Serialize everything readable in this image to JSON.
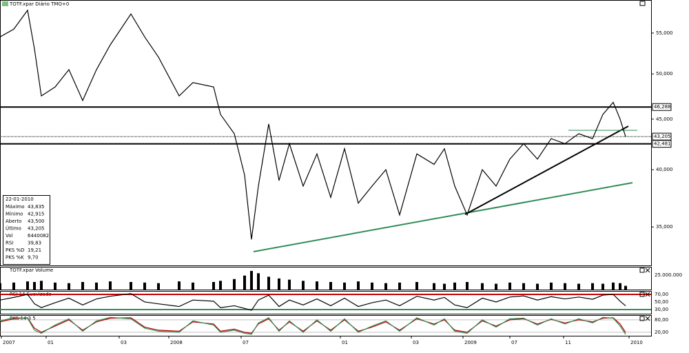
{
  "chart_data": {
    "type": "line",
    "title": "TOTF.xpar Diário TMO+0",
    "scale": "log",
    "color": "#000000",
    "xlim": [
      0,
      472.5
    ],
    "ylim": [
      32000,
      59400
    ],
    "yticks": [
      {
        "value": 35000,
        "label": "35,000"
      },
      {
        "value": 40000,
        "label": "40,000"
      },
      {
        "value": 45000,
        "label": "45,000"
      },
      {
        "value": 50000,
        "label": "50,000"
      },
      {
        "value": 55000,
        "label": "55,000"
      }
    ],
    "levels": [
      {
        "value": 46288,
        "label": "46,288",
        "style": "solid"
      },
      {
        "value": 43205,
        "label": "43,205",
        "style": "dotted"
      },
      {
        "value": 42481,
        "label": "42,481",
        "style": "solid"
      }
    ],
    "xticks": [
      {
        "value": 1,
        "label": "2007"
      },
      {
        "value": 33.5,
        "label": "01"
      },
      {
        "value": 86.5,
        "label": "03"
      },
      {
        "value": 122.5,
        "label": "2008"
      },
      {
        "value": 175,
        "label": "07"
      },
      {
        "value": 247,
        "label": "01"
      },
      {
        "value": 298.5,
        "label": "03"
      },
      {
        "value": 336,
        "label": "2009"
      },
      {
        "value": 370,
        "label": "07"
      },
      {
        "value": 409,
        "label": "11"
      },
      {
        "value": 456.5,
        "label": "2010"
      }
    ],
    "x": [
      0,
      10,
      20,
      25,
      30,
      40,
      50,
      60,
      70,
      80,
      95,
      105,
      115,
      130,
      140,
      155,
      160,
      170,
      177.5,
      182.5,
      187.5,
      195,
      202.5,
      210,
      220,
      230,
      240,
      250,
      260,
      270,
      280,
      290,
      302.5,
      315,
      322.5,
      330,
      339,
      350,
      360,
      370,
      380,
      390,
      400,
      410,
      420,
      430,
      437.5,
      445,
      450,
      454
    ],
    "values": [
      54500,
      55500,
      58000,
      53000,
      47500,
      48500,
      50500,
      47000,
      50500,
      53500,
      57500,
      54500,
      52000,
      47500,
      49000,
      48500,
      45500,
      43500,
      39500,
      34000,
      38500,
      44500,
      39000,
      42500,
      38500,
      41500,
      37500,
      42000,
      37000,
      38500,
      40000,
      36000,
      41500,
      40500,
      42000,
      38500,
      36000,
      40000,
      38500,
      41000,
      42500,
      41000,
      43000,
      42500,
      43500,
      43000,
      45500,
      46800,
      45000,
      43205
    ],
    "info": {
      "date": "22-01-2010",
      "rows": [
        {
          "label": "Máximo",
          "value": "43,835"
        },
        {
          "label": "Mínimo",
          "value": "42,915"
        },
        {
          "label": "Aberto",
          "value": "43,500"
        },
        {
          "label": "Último",
          "value": "43,205"
        },
        {
          "label": "Vol",
          "value": "6440082"
        },
        {
          "label": "RSI",
          "value": "39,83"
        },
        {
          "label": "PKS %D",
          "value": "19,21",
          "color": "#c00000"
        },
        {
          "label": "PKS %K",
          "value": "9,70",
          "color": "#2e8b57"
        }
      ]
    },
    "volume": {
      "title": "TOTF.xpar Volume",
      "color": "#000000",
      "ylim": [
        0,
        39000000
      ],
      "yticks": [
        {
          "value": 25000000,
          "label": "25.000.000"
        }
      ],
      "values": [
        11000000,
        12000000,
        14000000,
        13000000,
        15000000,
        12000000,
        11000000,
        13000000,
        12000000,
        14000000,
        13000000,
        12000000,
        11000000,
        14000000,
        12000000,
        13000000,
        15000000,
        18000000,
        24000000,
        32000000,
        28000000,
        22000000,
        19000000,
        17000000,
        15000000,
        14000000,
        13000000,
        12000000,
        14000000,
        12000000,
        11000000,
        12000000,
        13000000,
        11000000,
        10000000,
        12000000,
        13000000,
        11000000,
        10000000,
        12000000,
        11000000,
        10000000,
        12000000,
        11000000,
        10000000,
        11000000,
        10000000,
        12000000,
        11000000,
        6440082
      ]
    },
    "rsi": {
      "title": "RSI 14 Suavizado",
      "color": "#000000",
      "ylim": [
        19,
        79
      ],
      "yticks": [
        {
          "value": 30,
          "label": "30,00"
        },
        {
          "value": 50,
          "label": "50,00"
        },
        {
          "value": 70,
          "label": "70,00"
        }
      ],
      "values": [
        55,
        62,
        70,
        45,
        35,
        48,
        60,
        42,
        58,
        65,
        72,
        50,
        45,
        38,
        55,
        52,
        35,
        40,
        33,
        28,
        55,
        68,
        38,
        55,
        42,
        58,
        40,
        60,
        38,
        48,
        55,
        40,
        65,
        55,
        62,
        42,
        35,
        60,
        50,
        63,
        66,
        55,
        64,
        58,
        63,
        57,
        68,
        70,
        52,
        39.83
      ]
    },
    "stoch": {
      "title": "PKS 14 3 5",
      "ylim": [
        3,
        103
      ],
      "yticks": [
        {
          "value": 20,
          "label": "20,00"
        },
        {
          "value": 80,
          "label": "80,00"
        }
      ],
      "series": [
        {
          "name": "PKS %D",
          "color": "#c00000",
          "values": [
            70,
            85,
            90,
            40,
            20,
            50,
            80,
            30,
            70,
            88,
            90,
            45,
            30,
            25,
            70,
            60,
            25,
            35,
            20,
            15,
            60,
            85,
            30,
            70,
            25,
            75,
            30,
            80,
            25,
            45,
            70,
            30,
            85,
            60,
            80,
            30,
            20,
            75,
            50,
            80,
            85,
            60,
            82,
            65,
            80,
            70,
            88,
            90,
            60,
            19.21
          ]
        },
        {
          "name": "PKS %K",
          "color": "#2e8b57",
          "values": [
            75,
            90,
            88,
            30,
            15,
            55,
            85,
            25,
            75,
            92,
            85,
            40,
            25,
            20,
            75,
            55,
            20,
            30,
            15,
            10,
            65,
            90,
            25,
            75,
            20,
            80,
            25,
            85,
            20,
            50,
            75,
            25,
            90,
            55,
            85,
            25,
            15,
            80,
            45,
            85,
            88,
            55,
            85,
            60,
            85,
            65,
            92,
            88,
            50,
            9.7
          ]
        }
      ]
    }
  }
}
